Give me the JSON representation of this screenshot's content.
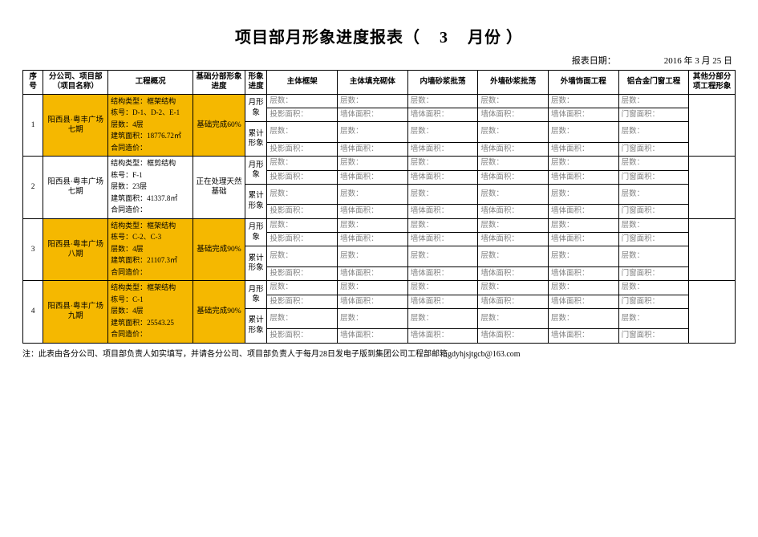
{
  "title_left": "项目部月形象进度报表（",
  "title_month": "3",
  "title_right": "月份 ）",
  "date_label": "报表日期：",
  "date_value": "2016 年 3  月  25   日",
  "columns": {
    "seq": "序号",
    "project": "分公司、项目部（项目名称）",
    "overview": "工程概况",
    "foundation": "基础分部形象进度",
    "progress": "形象进度",
    "c1": "主体框架",
    "c2": "主体填充砌体",
    "c3": "内墙砂浆批荡",
    "c4": "外墙砂浆批荡",
    "c5": "外墙饰面工程",
    "c6": "铝合金门窗工程",
    "c7": "其他分部分项工程形象"
  },
  "progress_labels": {
    "month": "月形象",
    "cum": "累计形象"
  },
  "row_labels": {
    "floor": "层数：",
    "area_touying": "投影面积：",
    "area_qiti": "墙体面积：",
    "area_menchuang": "门窗面积："
  },
  "rows": [
    {
      "seq": "1",
      "project": "阳西县·粤丰广场七期",
      "hl": true,
      "overview": [
        "结构类型：框架结构",
        "栋号：D-1、D-2、E-1",
        "层数：4层",
        "建筑面积：18776.72㎡",
        "合同造价："
      ],
      "foundation": "基础完成60%"
    },
    {
      "seq": "2",
      "project": "阳西县·粤丰广场七期",
      "hl": false,
      "overview": [
        "结构类型：框剪结构",
        "栋号：F-1",
        "层数：23层",
        "建筑面积：41337.8㎡",
        "合同造价："
      ],
      "foundation": "正在处理天然基础"
    },
    {
      "seq": "3",
      "project": "阳西县·粤丰广场八期",
      "hl": true,
      "overview": [
        "结构类型：框架结构",
        "栋号：C-2、C-3",
        "层数：4层",
        "建筑面积：21107.3㎡",
        "合同造价："
      ],
      "foundation": "基础完成90%"
    },
    {
      "seq": "4",
      "project": "阳西县·粤丰广场九期",
      "hl": true,
      "overview": [
        "结构类型：框架结构",
        "栋号：C-1",
        "层数：4层",
        "建筑面积：25543.25",
        "合同造价："
      ],
      "foundation": "基础完成90%"
    }
  ],
  "note": "注：此表由各分公司、项目部负责人如实填写，并请各分公司、项目部负责人于每月28日发电子版到集团公司工程部邮箱gdyhjsjtgcb@163.com"
}
